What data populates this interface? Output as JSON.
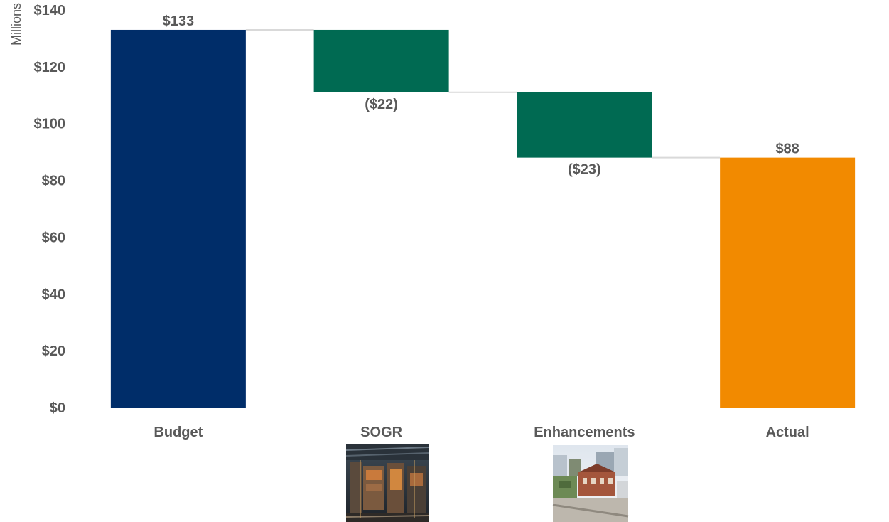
{
  "chart_data": {
    "type": "bar",
    "subtype": "waterfall",
    "categories": [
      "Budget",
      "SOGR",
      "Enhancements",
      "Actual"
    ],
    "values": [
      133,
      -22,
      -23,
      88
    ],
    "bar_roles": [
      "total",
      "change",
      "change",
      "total"
    ],
    "data_labels": [
      "$133",
      "($22)",
      "($23)",
      "$88"
    ],
    "ylabel": "Millions",
    "ylim": [
      0,
      140
    ],
    "yticks": [
      0,
      20,
      40,
      60,
      80,
      100,
      120,
      140
    ],
    "ytick_labels": [
      "$0",
      "$20",
      "$40",
      "$60",
      "$80",
      "$100",
      "$120",
      "$140"
    ],
    "grid": false,
    "connector_lines": true,
    "colors": {
      "Budget": "#002D69",
      "SOGR": "#006A52",
      "Enhancements": "#006A52",
      "Actual": "#F28A00",
      "connector": "#D9D9D9",
      "axis": "#BFBFBF",
      "text": "#595959"
    },
    "category_images": {
      "SOGR": "rail-yard-photo",
      "Enhancements": "station-aerial-photo"
    }
  }
}
